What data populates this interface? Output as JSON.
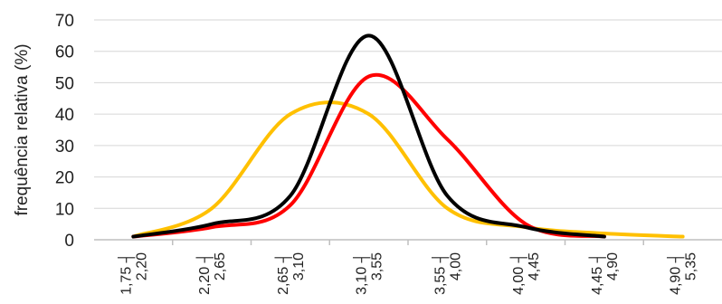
{
  "chart_data": {
    "type": "line",
    "title": "",
    "xlabel": "",
    "ylabel": "frequência relativa (%)",
    "ylim": [
      0,
      70
    ],
    "yticks": [
      "0",
      "10",
      "20",
      "30",
      "40",
      "50",
      "60",
      "70"
    ],
    "grid": true,
    "categories": [
      "1,75 ┤ 2,20",
      "2,20 ┤ 2,65",
      "2,65 ┤ 3,10",
      "3,10 ┤ 3,55",
      "3,55 ┤ 4,00",
      "4,00 ┤ 4,45",
      "4,45 ┤ 4,90",
      "4,90 ┤ 5,35"
    ],
    "series": [
      {
        "color": "#ffc000",
        "values": [
          1,
          10,
          40,
          40,
          10,
          4,
          2,
          1
        ]
      },
      {
        "color": "#ff0000",
        "values": [
          1,
          4,
          11,
          52,
          32,
          5,
          1,
          null
        ]
      },
      {
        "color": "#000000",
        "values": [
          1,
          5,
          14,
          65,
          14,
          4,
          1,
          null
        ]
      }
    ]
  }
}
